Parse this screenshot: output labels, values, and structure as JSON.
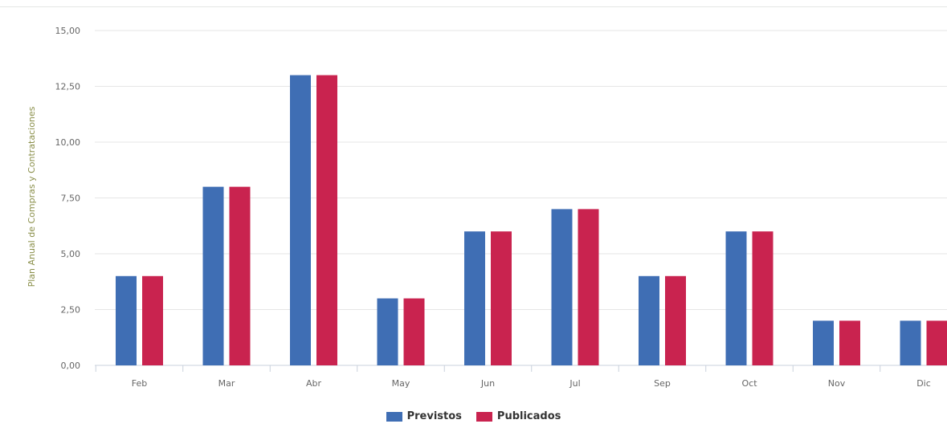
{
  "chart_data": {
    "type": "bar",
    "ylabel": "Plan Anual de Compras y Contrataciones",
    "ylim": [
      0,
      15
    ],
    "yticks": [
      "0,00",
      "2,50",
      "5,00",
      "7,50",
      "10,00",
      "12,50",
      "15,00"
    ],
    "ytick_values": [
      0,
      2.5,
      5,
      7.5,
      10,
      12.5,
      15
    ],
    "categories": [
      "Feb",
      "Mar",
      "Abr",
      "May",
      "Jun",
      "Jul",
      "Sep",
      "Oct",
      "Nov",
      "Dic"
    ],
    "series": [
      {
        "name": "Previstos",
        "color": "#3f6eb4",
        "values": [
          4,
          8,
          13,
          3,
          6,
          7,
          4,
          6,
          2,
          2
        ]
      },
      {
        "name": "Publicados",
        "color": "#c9234f",
        "values": [
          4,
          8,
          13,
          3,
          6,
          7,
          4,
          6,
          2,
          2
        ]
      }
    ],
    "grid": true,
    "legend_position": "bottom-center"
  }
}
